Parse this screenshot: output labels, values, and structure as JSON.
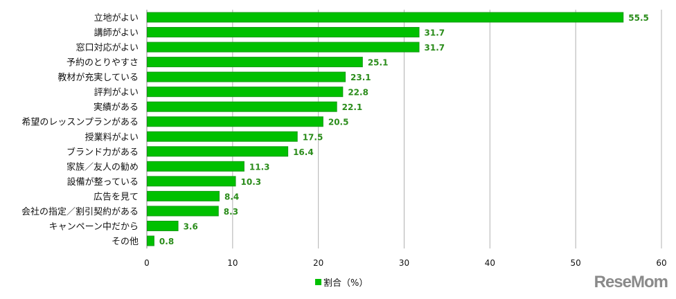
{
  "chart_data": {
    "type": "bar",
    "orientation": "horizontal",
    "categories": [
      "立地がよい",
      "講師がよい",
      "窓口対応がよい",
      "予約のとりやすさ",
      "教材が充実している",
      "評判がよい",
      "実績がある",
      "希望のレッスンプランがある",
      "授業料がよい",
      "ブランド力がある",
      "家族／友人の勧め",
      "設備が整っている",
      "広告を見て",
      "会社の指定／割引契約がある",
      "キャンペーン中だから",
      "その他"
    ],
    "series": [
      {
        "name": "割合（%）",
        "values": [
          55.5,
          31.7,
          31.7,
          25.1,
          23.1,
          22.8,
          22.1,
          20.5,
          17.5,
          16.4,
          11.3,
          10.3,
          8.4,
          8.3,
          3.6,
          0.8
        ]
      }
    ],
    "xlim": [
      0,
      60
    ],
    "xticks": [
      0,
      10,
      20,
      30,
      40,
      50,
      60
    ],
    "grid": true,
    "legend_position": "bottom",
    "colors": {
      "bar": "#00c000",
      "bar_border": "#169a16",
      "value_label": "#2a8c1a",
      "grid": "#b0b0b0"
    }
  },
  "watermark": "ReseMom"
}
